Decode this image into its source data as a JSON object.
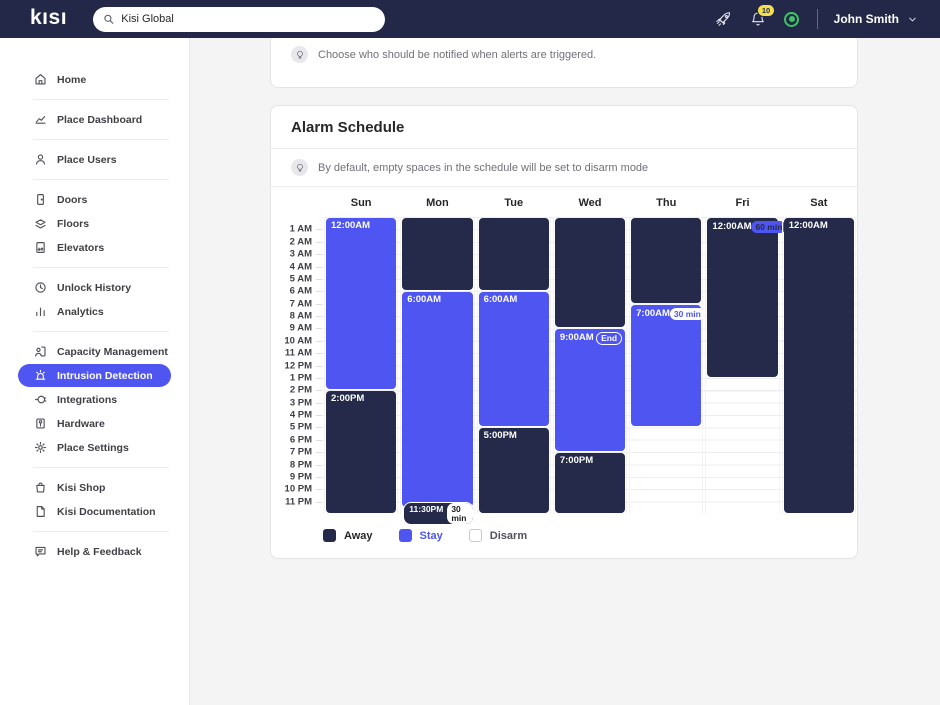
{
  "topbar": {
    "logo": "kısı",
    "search_value": "Kisi Global",
    "notifications_count": "10",
    "user_name": "John Smith"
  },
  "colors": {
    "navy": "#232849",
    "accent_blue": "#4e55f1",
    "badge_yellow": "#f5df4d",
    "status_green": "#3fc463"
  },
  "sidebar": {
    "groups": [
      [
        {
          "label": "Home",
          "icon": "home-icon"
        }
      ],
      [
        {
          "label": "Place Dashboard",
          "icon": "dashboard-icon"
        }
      ],
      [
        {
          "label": "Place Users",
          "icon": "user-icon"
        }
      ],
      [
        {
          "label": "Doors",
          "icon": "door-icon"
        },
        {
          "label": "Floors",
          "icon": "floors-icon"
        },
        {
          "label": "Elevators",
          "icon": "elevator-icon"
        }
      ],
      [
        {
          "label": "Unlock History",
          "icon": "clock-icon"
        },
        {
          "label": "Analytics",
          "icon": "bar-chart-icon"
        }
      ],
      [
        {
          "label": "Capacity Management",
          "icon": "capacity-icon"
        },
        {
          "label": "Intrusion Detection",
          "icon": "siren-icon",
          "active": true
        },
        {
          "label": "Integrations",
          "icon": "plug-icon"
        },
        {
          "label": "Hardware",
          "icon": "hardware-icon"
        },
        {
          "label": "Place Settings",
          "icon": "gear-icon"
        }
      ],
      [
        {
          "label": "Kisi Shop",
          "icon": "shopping-bag-icon"
        },
        {
          "label": "Kisi Documentation",
          "icon": "document-icon"
        }
      ],
      [
        {
          "label": "Help & Feedback",
          "icon": "chat-bubble-icon"
        }
      ]
    ]
  },
  "notify_card": {
    "tip": "Choose who should be notified when alerts are triggered."
  },
  "schedule_card": {
    "title": "Alarm Schedule",
    "tip": "By default, empty spaces in the schedule will be set to disarm mode",
    "days": [
      "Sun",
      "Mon",
      "Tue",
      "Wed",
      "Thu",
      "Fri",
      "Sat"
    ],
    "hour_labels": [
      "1 AM",
      "2 AM",
      "3 AM",
      "4 AM",
      "5 AM",
      "6 AM",
      "7 AM",
      "8 AM",
      "9 AM",
      "10 AM",
      "11 AM",
      "12 PM",
      "1 PM",
      "2 PM",
      "3 PM",
      "4 PM",
      "5 PM",
      "6 PM",
      "7 PM",
      "8 PM",
      "9 PM",
      "10 PM",
      "11 PM"
    ],
    "blocks": [
      [
        {
          "mode": "stay",
          "start": 0,
          "end": 14,
          "label": "12:00AM"
        },
        {
          "mode": "away",
          "start": 14,
          "end": 24,
          "label": "2:00PM"
        }
      ],
      [
        {
          "mode": "away",
          "start": 0,
          "end": 6
        },
        {
          "mode": "stay",
          "start": 6,
          "end": 23.5,
          "label": "6:00AM",
          "footer": {
            "time": "11:30PM",
            "duration": "30 min"
          }
        }
      ],
      [
        {
          "mode": "away",
          "start": 0,
          "end": 6
        },
        {
          "mode": "stay",
          "start": 6,
          "end": 17,
          "label": "6:00AM"
        },
        {
          "mode": "away",
          "start": 17,
          "end": 24,
          "label": "5:00PM"
        }
      ],
      [
        {
          "mode": "away",
          "start": 0,
          "end": 9
        },
        {
          "mode": "stay",
          "start": 9,
          "end": 19,
          "label": "9:00AM",
          "badge": {
            "text": "End",
            "style": "outline"
          }
        },
        {
          "mode": "away",
          "start": 19,
          "end": 24,
          "label": "7:00PM"
        }
      ],
      [
        {
          "mode": "away",
          "start": 0,
          "end": 7
        },
        {
          "mode": "stay",
          "start": 7,
          "end": 17,
          "label": "7:00AM",
          "badge": {
            "text": "30 min",
            "style": "white"
          }
        }
      ],
      [
        {
          "mode": "away",
          "start": 0,
          "end": 13,
          "label": "12:00AM",
          "badge": {
            "text": "60 min",
            "style": "blue"
          }
        }
      ],
      [
        {
          "mode": "away",
          "start": 0,
          "end": 24,
          "label": "12:00AM"
        }
      ]
    ],
    "legend": [
      {
        "label": "Away",
        "color": "#252a4a",
        "text_color": "#27272a",
        "border": "none"
      },
      {
        "label": "Stay",
        "color": "#4e55f1",
        "text_color": "#4e55f1",
        "border": "none"
      },
      {
        "label": "Disarm",
        "color": "#ffffff",
        "text_color": "#52525b",
        "border": "1px solid #c9c9d1"
      }
    ]
  }
}
